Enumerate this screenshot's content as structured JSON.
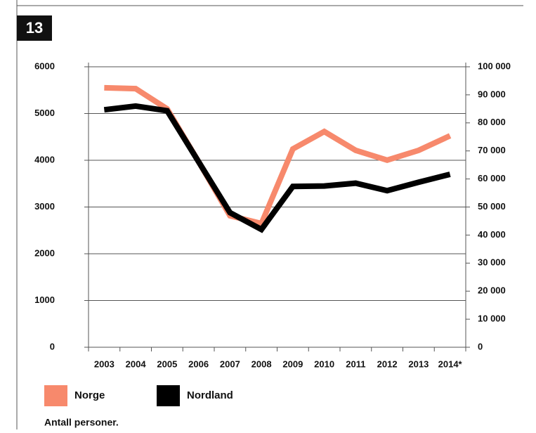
{
  "chart_data": {
    "type": "line",
    "figure_number": "13",
    "categories": [
      "2003",
      "2004",
      "2005",
      "2006",
      "2007",
      "2008",
      "2009",
      "2010",
      "2011",
      "2012",
      "2013",
      "2014*"
    ],
    "series": [
      {
        "name": "Norge",
        "color": "#f7896c",
        "axis": "y2",
        "values": [
          92500,
          92200,
          85000,
          66200,
          46900,
          44100,
          70700,
          76900,
          70200,
          66700,
          70200,
          75400
        ]
      },
      {
        "name": "Nordland",
        "color": "#000000",
        "values": [
          5080,
          5160,
          5060,
          3970,
          2880,
          2520,
          3440,
          3450,
          3510,
          3350,
          3530,
          3700
        ]
      }
    ],
    "ylim": [
      0,
      6000
    ],
    "yticks": [
      0,
      1000,
      2000,
      3000,
      4000,
      5000,
      6000
    ],
    "y2lim": [
      0,
      100000
    ],
    "y2ticks": [
      0,
      {
        "value": 10000,
        "label": "10 000"
      },
      {
        "value": 20000,
        "label": "20 000"
      },
      {
        "value": 30000,
        "label": "30 000"
      },
      {
        "value": 40000,
        "label": "40 000"
      },
      {
        "value": 50000,
        "label": "50 000"
      },
      {
        "value": 60000,
        "label": "60 000"
      },
      {
        "value": 70000,
        "label": "70 000"
      },
      {
        "value": 80000,
        "label": "80 000"
      },
      {
        "value": 90000,
        "label": "90 000"
      },
      {
        "value": 100000,
        "label": "100 000"
      }
    ],
    "grid": true,
    "note": "Antall personer."
  }
}
